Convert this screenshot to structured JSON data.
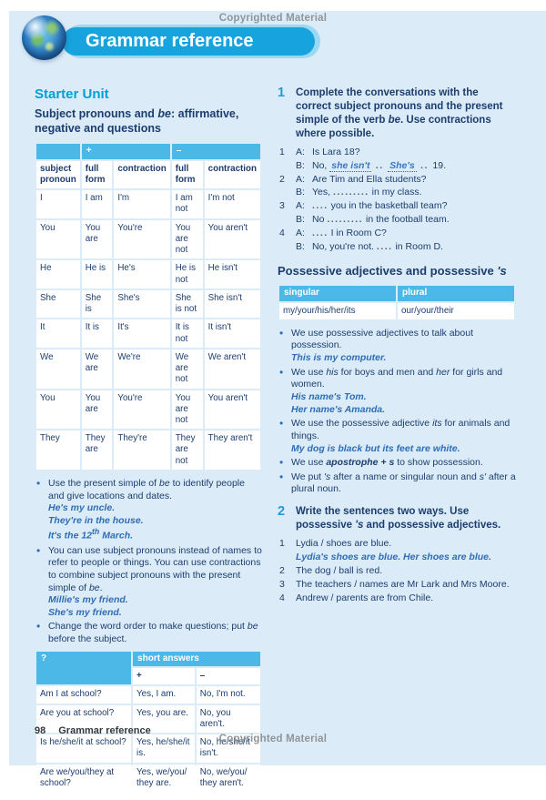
{
  "colors": {
    "page_bg": "#dbecf8",
    "banner_blue": "#17a3de",
    "section_cyan": "#00a0d6",
    "navy_text": "#1c3d6e",
    "table_header_blue": "#4bb8e8",
    "example_blue": "#2f6cb3",
    "copyright_gray": "#8f9499"
  },
  "header": {
    "copyright": "Copyrighted Material",
    "title": "Grammar reference",
    "globe_icon": "earth-globe"
  },
  "left": {
    "section_title": "Starter Unit",
    "subheading": [
      {
        "t": "Subject pronouns and "
      },
      {
        "t": "be",
        "i": 1
      },
      {
        "t": ": affirmative, negative and questions"
      }
    ],
    "table1": {
      "sign_plus": "+",
      "sign_minus": "–",
      "col_headers": [
        "subject pronoun",
        "full form",
        "contraction",
        "full form",
        "contraction"
      ],
      "rows": [
        [
          "I",
          "I am",
          "I'm",
          "I am not",
          "I'm not"
        ],
        [
          "You",
          "You are",
          "You're",
          "You are not",
          "You aren't"
        ],
        [
          "He",
          "He is",
          "He's",
          "He is not",
          "He isn't"
        ],
        [
          "She",
          "She is",
          "She's",
          "She is not",
          "She isn't"
        ],
        [
          "It",
          "It is",
          "It's",
          "It is not",
          "It isn't"
        ],
        [
          "We",
          "We are",
          "We're",
          "We are not",
          "We aren't"
        ],
        [
          "You",
          "You are",
          "You're",
          "You are not",
          "You aren't"
        ],
        [
          "They",
          "They are",
          "They're",
          "They are not",
          "They aren't"
        ]
      ]
    },
    "bullets": [
      {
        "text": [
          {
            "t": "Use the present simple of "
          },
          {
            "t": "be",
            "i": 1
          },
          {
            "t": " to identify people and give locations and dates."
          }
        ],
        "examples": [
          [
            {
              "t": "He's my uncle."
            }
          ],
          [
            {
              "t": "They're in the house."
            }
          ],
          [
            {
              "t": "It's the 12"
            },
            {
              "t": "th",
              "sup": 1
            },
            {
              "t": " March."
            }
          ]
        ]
      },
      {
        "text": [
          {
            "t": "You can use subject pronouns instead of names to refer to people or things. You can use contractions to combine subject pronouns with the present simple of "
          },
          {
            "t": "be",
            "i": 1
          },
          {
            "t": "."
          }
        ],
        "examples": [
          [
            {
              "t": "Millie's my friend."
            }
          ],
          [
            {
              "t": "She's my friend."
            }
          ]
        ]
      },
      {
        "text": [
          {
            "t": "Change the word order to make questions; put "
          },
          {
            "t": "be",
            "i": 1
          },
          {
            "t": " before the subject."
          }
        ],
        "examples": []
      }
    ],
    "table2": {
      "q_header": "?",
      "sa_header": "short answers",
      "sign_plus": "+",
      "sign_minus": "–",
      "rows": [
        [
          "Am I at school?",
          "Yes, I am.",
          "No, I'm not."
        ],
        [
          "Are you at school?",
          "Yes, you are.",
          "No, you aren't."
        ],
        [
          "Is he/she/it at school?",
          "Yes, he/she/it is.",
          "No, he/she/it isn't."
        ],
        [
          "Are we/you/they at school?",
          "Yes, we/you/ they are.",
          "No, we/you/ they aren't."
        ]
      ]
    }
  },
  "right": {
    "ex1": {
      "number": "1",
      "heading": [
        {
          "t": "Complete the conversations with the correct subject pronouns and the present simple of the verb "
        },
        {
          "t": "be",
          "i": 1
        },
        {
          "t": ". Use contractions where possible."
        }
      ],
      "items": [
        {
          "n": "1",
          "lines": [
            {
              "s": "A:",
              "seg": [
                {
                  "t": "Is Lara 18?"
                }
              ]
            },
            {
              "s": "B:",
              "seg": [
                {
                  "t": "No, "
                },
                {
                  "t": "she isn't",
                  "cls": "ans"
                },
                {
                  "t": " .. ",
                  "cls": "dots"
                },
                {
                  "t": "She's",
                  "cls": "ans"
                },
                {
                  "t": " .. ",
                  "cls": "dots"
                },
                {
                  "t": " 19."
                }
              ]
            }
          ]
        },
        {
          "n": "2",
          "lines": [
            {
              "s": "A:",
              "seg": [
                {
                  "t": "Are Tim and Ella students?"
                }
              ]
            },
            {
              "s": "B:",
              "seg": [
                {
                  "t": "Yes, "
                },
                {
                  "t": ".........",
                  "cls": "dots"
                },
                {
                  "t": " in my class."
                }
              ]
            }
          ]
        },
        {
          "n": "3",
          "lines": [
            {
              "s": "A:",
              "seg": [
                {
                  "t": "....",
                  "cls": "dots"
                },
                {
                  "t": " you in the basketball team?"
                }
              ]
            },
            {
              "s": "B:",
              "seg": [
                {
                  "t": "No "
                },
                {
                  "t": ".........",
                  "cls": "dots"
                },
                {
                  "t": " in the football team."
                }
              ]
            }
          ]
        },
        {
          "n": "4",
          "lines": [
            {
              "s": "A:",
              "seg": [
                {
                  "t": "....",
                  "cls": "dots"
                },
                {
                  "t": " I in Room C?"
                }
              ]
            },
            {
              "s": "B:",
              "seg": [
                {
                  "t": "No, you're not. "
                },
                {
                  "t": "....",
                  "cls": "dots"
                },
                {
                  "t": " in Room D."
                }
              ]
            }
          ]
        }
      ]
    },
    "poss_heading": [
      {
        "t": "Possessive adjectives and possessive "
      },
      {
        "t": "'s",
        "i": 1
      }
    ],
    "table3": {
      "headers": [
        "singular",
        "plural"
      ],
      "rows": [
        [
          "my/your/his/her/its",
          "our/your/their"
        ]
      ]
    },
    "bullets": [
      {
        "text": [
          {
            "t": "We use possessive adjectives to talk about possession."
          }
        ],
        "examples": [
          [
            {
              "t": "This is my computer."
            }
          ]
        ]
      },
      {
        "text": [
          {
            "t": "We use "
          },
          {
            "t": "his",
            "i": 1
          },
          {
            "t": " for boys and men and "
          },
          {
            "t": "her",
            "i": 1
          },
          {
            "t": " for girls and women."
          }
        ],
        "examples": [
          [
            {
              "t": "His name's Tom."
            }
          ],
          [
            {
              "t": "Her name's Amanda."
            }
          ]
        ]
      },
      {
        "text": [
          {
            "t": "We use the possessive adjective "
          },
          {
            "t": "its",
            "i": 1
          },
          {
            "t": " for animals and things."
          }
        ],
        "examples": [
          [
            {
              "t": "My dog is black but its feet are white."
            }
          ]
        ]
      },
      {
        "text": [
          {
            "t": "We use "
          },
          {
            "t": "apostrophe + s",
            "i": 1,
            "b": 1
          },
          {
            "t": " to show possession."
          }
        ],
        "examples": []
      },
      {
        "text": [
          {
            "t": "We put "
          },
          {
            "t": "'s",
            "i": 1
          },
          {
            "t": " after a name or singular noun and "
          },
          {
            "t": "s'",
            "i": 1
          },
          {
            "t": " after a plural noun."
          }
        ],
        "examples": []
      }
    ],
    "ex2": {
      "number": "2",
      "heading": [
        {
          "t": "Write the sentences two ways. Use possessive "
        },
        {
          "t": "'s",
          "i": 1
        },
        {
          "t": " and possessive adjectives."
        }
      ],
      "items": [
        {
          "n": "1",
          "text": [
            {
              "t": "Lydia / shoes are blue."
            }
          ],
          "answer": [
            {
              "t": "Lydia's shoes are blue. Her shoes are blue."
            }
          ]
        },
        {
          "n": "2",
          "text": [
            {
              "t": "The dog / ball is red."
            }
          ],
          "answer": []
        },
        {
          "n": "3",
          "text": [
            {
              "t": "The teachers / names are Mr Lark and Mrs Moore."
            }
          ],
          "answer": []
        },
        {
          "n": "4",
          "text": [
            {
              "t": "Andrew / parents are from Chile."
            }
          ],
          "answer": []
        }
      ]
    }
  },
  "footer": {
    "page_number": "98",
    "label": "Grammar reference",
    "copyright": "Copyrighted Material"
  }
}
